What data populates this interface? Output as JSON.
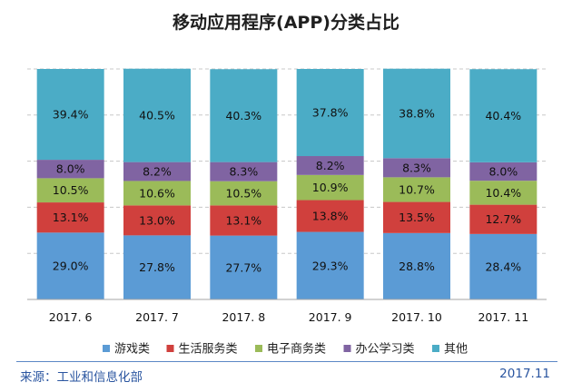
{
  "chart_data": {
    "type": "bar",
    "stacked": true,
    "title": "移动应用程序(APP)分类占比",
    "categories": [
      "2017. 6",
      "2017. 7",
      "2017. 8",
      "2017. 9",
      "2017. 10",
      "2017. 11"
    ],
    "series": [
      {
        "name": "游戏类",
        "color": "#5b9bd5",
        "values": [
          29.0,
          27.8,
          27.7,
          29.3,
          28.8,
          28.4
        ],
        "labels": [
          "29.0%",
          "27.8%",
          "27.7%",
          "29.3%",
          "28.8%",
          "28.4%"
        ]
      },
      {
        "name": "生活服务类",
        "color": "#d0403d",
        "values": [
          13.1,
          13.0,
          13.1,
          13.8,
          13.5,
          12.7
        ],
        "labels": [
          "13.1%",
          "13.0%",
          "13.1%",
          "13.8%",
          "13.5%",
          "12.7%"
        ]
      },
      {
        "name": "电子商务类",
        "color": "#9bbb59",
        "values": [
          10.5,
          10.6,
          10.5,
          10.9,
          10.7,
          10.4
        ],
        "labels": [
          "10.5%",
          "10.6%",
          "10.5%",
          "10.9%",
          "10.7%",
          "10.4%"
        ]
      },
      {
        "name": "办公学习类",
        "color": "#8064a2",
        "values": [
          8.0,
          8.2,
          8.3,
          8.2,
          8.3,
          8.0
        ],
        "labels": [
          "8.0%",
          "8.2%",
          "8.3%",
          "8.2%",
          "8.3%",
          "8.0%"
        ]
      },
      {
        "name": "其他",
        "color": "#4bacc6",
        "values": [
          39.4,
          40.5,
          40.3,
          37.8,
          38.8,
          40.4
        ],
        "labels": [
          "39.4%",
          "40.5%",
          "40.3%",
          "37.8%",
          "38.8%",
          "40.4%"
        ]
      }
    ],
    "ylim": [
      0,
      100
    ],
    "grid": true,
    "legend": "bottom"
  },
  "footer": {
    "source": "来源：工业和信息化部",
    "date": "2017.11"
  }
}
